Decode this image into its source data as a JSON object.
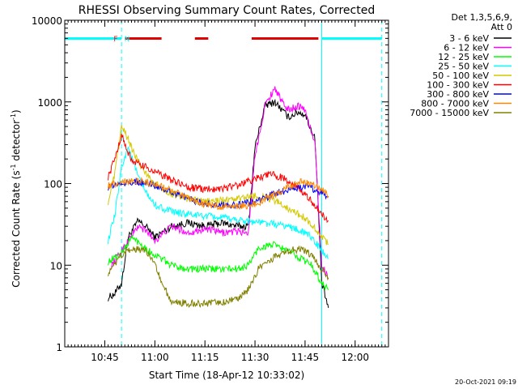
{
  "chart_data": {
    "type": "line",
    "title": "RHESSI Observing Summary Count Rates, Corrected",
    "xlabel": "Start Time (18-Apr-12 10:33:02)",
    "ylabel_main": "Corrected Count Rate (s",
    "ylabel_sup1": "-1",
    "ylabel_mid": " detector",
    "ylabel_sup2": "-1",
    "ylabel_end": ")",
    "yscale": "log",
    "xlim": [
      "10:33",
      "12:10"
    ],
    "ylim": [
      1,
      10000
    ],
    "x_ticks": [
      "10:45",
      "11:00",
      "11:15",
      "11:30",
      "11:45",
      "12:00"
    ],
    "y_ticks": [
      "1",
      "10",
      "100",
      "1000",
      "10000"
    ],
    "legend_header": [
      "Det 1,3,5,6,9,",
      "Att 0"
    ],
    "flag_labels": [
      {
        "text": "F",
        "color": "#ff0000"
      },
      {
        "text": "N",
        "color": "#00ffff"
      }
    ],
    "footer": "20-Oct-2021 09:19",
    "colors": {
      "cyan_markers": "#00ffff",
      "flare_bar": "#e00000"
    },
    "series": [
      {
        "name": "3 - 6 keV",
        "color": "#000000",
        "x": [
          "10:46",
          "10:48",
          "10:50",
          "10:52",
          "10:55",
          "10:58",
          "11:00",
          "11:05",
          "11:10",
          "11:15",
          "11:20",
          "11:25",
          "11:28",
          "11:30",
          "11:33",
          "11:36",
          "11:38",
          "11:40",
          "11:43",
          "11:45",
          "11:48",
          "11:50",
          "11:52"
        ],
        "y": [
          4,
          4.5,
          6,
          22,
          35,
          28,
          22,
          30,
          33,
          30,
          33,
          30,
          30,
          280,
          900,
          1000,
          800,
          650,
          750,
          700,
          350,
          6,
          3
        ]
      },
      {
        "name": "6 - 12 keV",
        "color": "#ff00ff",
        "x": [
          "10:47",
          "10:50",
          "10:55",
          "10:58",
          "11:00",
          "11:05",
          "11:10",
          "11:15",
          "11:20",
          "11:25",
          "11:28",
          "11:30",
          "11:33",
          "11:36",
          "11:38",
          "11:40",
          "11:43",
          "11:45",
          "11:48",
          "11:50",
          "11:52"
        ],
        "y": [
          10,
          15,
          30,
          25,
          20,
          30,
          25,
          28,
          25,
          26,
          25,
          220,
          900,
          1500,
          1000,
          800,
          900,
          800,
          300,
          10,
          7
        ]
      },
      {
        "name": "12 - 25 keV",
        "color": "#00ff00",
        "x": [
          "10:46",
          "10:50",
          "10:53",
          "10:56",
          "10:59",
          "11:02",
          "11:05",
          "11:10",
          "11:15",
          "11:20",
          "11:25",
          "11:28",
          "11:31",
          "11:35",
          "11:40",
          "11:44",
          "11:47",
          "11:50",
          "11:52"
        ],
        "y": [
          11,
          14,
          22,
          18,
          14,
          12,
          10,
          9,
          9,
          9,
          9,
          10,
          16,
          18,
          15,
          12,
          10,
          6,
          5
        ]
      },
      {
        "name": "25 - 50 keV",
        "color": "#00ffff",
        "x": [
          "10:46",
          "10:48",
          "10:50",
          "10:52",
          "10:55",
          "10:58",
          "11:00",
          "11:05",
          "11:10",
          "11:15",
          "11:20",
          "11:25",
          "11:30",
          "11:35",
          "11:40",
          "11:44",
          "11:47",
          "11:50",
          "11:52"
        ],
        "y": [
          20,
          40,
          160,
          280,
          120,
          70,
          55,
          45,
          42,
          40,
          38,
          36,
          34,
          32,
          30,
          26,
          22,
          15,
          12
        ]
      },
      {
        "name": "50 - 100 keV",
        "color": "#d4c800",
        "x": [
          "10:46",
          "10:48",
          "10:50",
          "10:52",
          "10:54",
          "10:57",
          "11:00",
          "11:05",
          "11:10",
          "11:15",
          "11:20",
          "11:25",
          "11:30",
          "11:35",
          "11:40",
          "11:44",
          "11:47",
          "11:50",
          "11:52"
        ],
        "y": [
          60,
          130,
          500,
          350,
          220,
          140,
          100,
          75,
          65,
          60,
          62,
          65,
          70,
          65,
          50,
          40,
          32,
          22,
          18
        ]
      },
      {
        "name": "100 - 300 keV",
        "color": "#ff0000",
        "x": [
          "10:46",
          "10:48",
          "10:50",
          "10:52",
          "10:54",
          "10:57",
          "11:00",
          "11:05",
          "11:10",
          "11:15",
          "11:20",
          "11:25",
          "11:30",
          "11:35",
          "11:40",
          "11:44",
          "11:47",
          "11:50",
          "11:52"
        ],
        "y": [
          120,
          200,
          400,
          230,
          180,
          160,
          140,
          110,
          90,
          85,
          88,
          95,
          115,
          130,
          110,
          80,
          60,
          42,
          35
        ]
      },
      {
        "name": "300 - 800 keV",
        "color": "#0000ff",
        "x": [
          "10:46",
          "10:48",
          "10:50",
          "10:52",
          "10:55",
          "10:58",
          "11:00",
          "11:05",
          "11:10",
          "11:15",
          "11:20",
          "11:25",
          "11:30",
          "11:35",
          "11:40",
          "11:44",
          "11:47",
          "11:50",
          "11:52"
        ],
        "y": [
          90,
          95,
          100,
          103,
          103,
          100,
          95,
          80,
          65,
          57,
          54,
          55,
          60,
          72,
          85,
          92,
          88,
          78,
          70
        ]
      },
      {
        "name": "800 - 7000 keV",
        "color": "#ff8800",
        "x": [
          "10:46",
          "10:48",
          "10:50",
          "10:52",
          "10:55",
          "10:58",
          "11:00",
          "11:05",
          "11:10",
          "11:15",
          "11:20",
          "11:25",
          "11:30",
          "11:35",
          "11:40",
          "11:44",
          "11:47",
          "11:50",
          "11:52"
        ],
        "y": [
          95,
          100,
          105,
          108,
          108,
          104,
          98,
          82,
          65,
          56,
          52,
          52,
          56,
          70,
          90,
          105,
          100,
          85,
          70
        ]
      },
      {
        "name": "7000 - 15000 keV",
        "color": "#808000",
        "x": [
          "10:46",
          "10:48",
          "10:50",
          "10:52",
          "10:55",
          "10:58",
          "11:00",
          "11:02",
          "11:05",
          "11:10",
          "11:15",
          "11:20",
          "11:25",
          "11:28",
          "11:31",
          "11:35",
          "11:40",
          "11:44",
          "11:47",
          "11:50",
          "11:52"
        ],
        "y": [
          8,
          10,
          13,
          15,
          16,
          14,
          11,
          6,
          3.6,
          3.4,
          3.4,
          3.5,
          3.8,
          5,
          9,
          12,
          15,
          16,
          13,
          9,
          7
        ]
      }
    ],
    "state_bars": [
      {
        "label": "cyan-left",
        "color": "#00ffff",
        "start": "10:33",
        "end": "10:50"
      },
      {
        "label": "flare-1",
        "color": "#e00000",
        "start": "10:51",
        "end": "11:02"
      },
      {
        "label": "flare-2",
        "color": "#e00000",
        "start": "11:12",
        "end": "11:16"
      },
      {
        "label": "flare-3",
        "color": "#e00000",
        "start": "11:29",
        "end": "11:49"
      },
      {
        "label": "cyan-right",
        "color": "#00ffff",
        "start": "11:50",
        "end": "12:08"
      }
    ],
    "vertical_markers": [
      {
        "time": "10:33",
        "color": "#00ffff",
        "style": "solid"
      },
      {
        "time": "10:50",
        "color": "#00ffff",
        "style": "dashed"
      },
      {
        "time": "11:50",
        "color": "#00ffff",
        "style": "solid"
      },
      {
        "time": "12:08",
        "color": "#00ffff",
        "style": "dashed"
      }
    ]
  }
}
